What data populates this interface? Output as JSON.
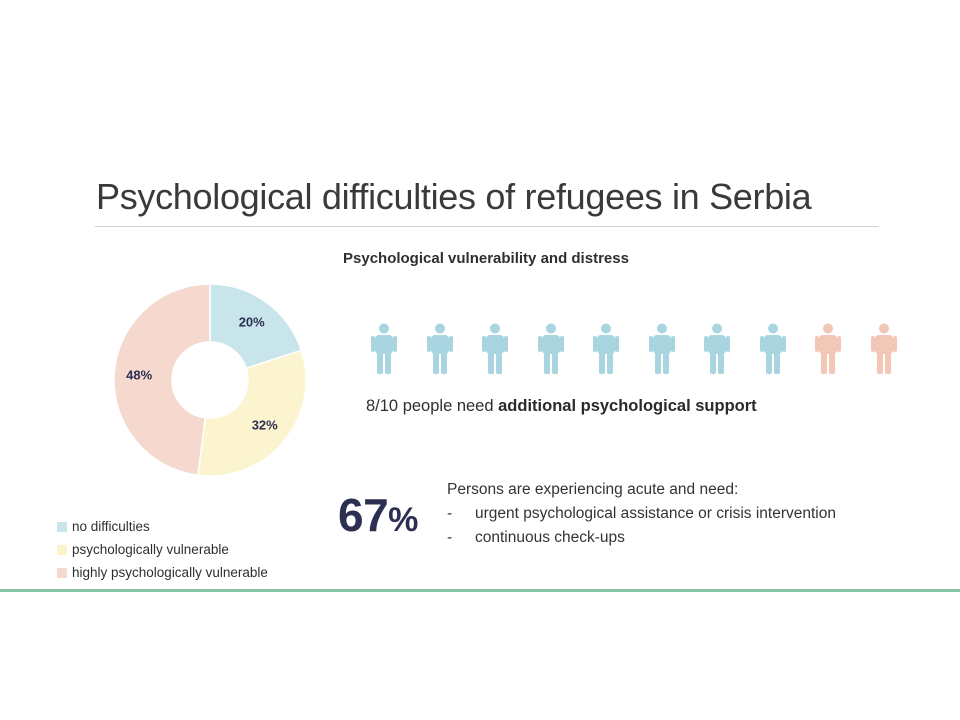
{
  "title": "Psychological difficulties of refugees in Serbia",
  "section_heading": "Psychological vulnerability and distress",
  "colors": {
    "no_difficulties": "#c8e5ec",
    "psychologically_vulnerable": "#fcf4cf",
    "highly_vulnerable": "#f5d9cf",
    "person_blue": "#a9d5e0",
    "person_peach": "#f2c7b5",
    "stat_navy": "#2c2f52",
    "footer_line": "#86c3a8"
  },
  "chart_data": {
    "type": "pie",
    "variant": "donut",
    "categories": [
      "no difficulties",
      "psychologically vulnerable",
      "highly psychologically vulnerable"
    ],
    "values": [
      20,
      32,
      48
    ],
    "labels": [
      "20%",
      "32%",
      "48%"
    ],
    "legend_position": "bottom-left"
  },
  "people": {
    "total": 10,
    "highlighted": 8,
    "icon": "person-icon",
    "caption_prefix": "8/10 people need ",
    "caption_bold": "additional psychological support"
  },
  "acute_stat": {
    "number": "67",
    "percent_sign": "%",
    "lead": "Persons are experiencing acute and need:",
    "dash": "-",
    "items": [
      "urgent psychological assistance or crisis intervention",
      "continuous check-ups"
    ]
  }
}
